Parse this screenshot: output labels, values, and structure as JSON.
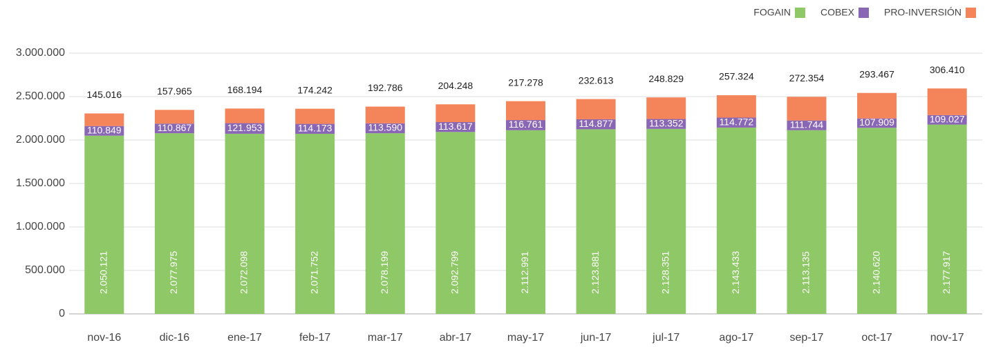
{
  "chart_data": {
    "type": "stacked_bar",
    "categories": [
      "nov-16",
      "dic-16",
      "ene-17",
      "feb-17",
      "mar-17",
      "abr-17",
      "may-17",
      "jun-17",
      "jul-17",
      "ago-17",
      "sep-17",
      "oct-17",
      "nov-17"
    ],
    "series": [
      {
        "name": "FOGAIN",
        "color": "#8fc866",
        "values": [
          2050121,
          2077975,
          2072098,
          2071752,
          2078199,
          2092799,
          2112991,
          2123881,
          2128351,
          2143433,
          2113135,
          2140620,
          2177917
        ],
        "value_labels": [
          "2.050.121",
          "2.077.975",
          "2.072.098",
          "2.071.752",
          "2.078.199",
          "2.092.799",
          "2.112.991",
          "2.123.881",
          "2.128.351",
          "2.143.433",
          "2.113.135",
          "2.140.620",
          "2.177.917"
        ]
      },
      {
        "name": "COBEX",
        "color": "#8a67b5",
        "values": [
          110849,
          110867,
          121953,
          114173,
          113590,
          113617,
          116761,
          114877,
          113352,
          114772,
          111744,
          107909,
          109027
        ],
        "value_labels": [
          "110.849",
          "110.867",
          "121.953",
          "114.173",
          "113.590",
          "113.617",
          "116.761",
          "114.877",
          "113.352",
          "114.772",
          "111.744",
          "107.909",
          "109.027"
        ]
      },
      {
        "name": "PRO-INVERSIÓN",
        "color": "#f4845a",
        "values": [
          145016,
          157965,
          168194,
          174242,
          192786,
          204248,
          217278,
          232613,
          248829,
          257324,
          272354,
          293467,
          306410
        ],
        "value_labels": [
          "145.016",
          "157.965",
          "168.194",
          "174.242",
          "192.786",
          "204.248",
          "217.278",
          "232.613",
          "248.829",
          "257.324",
          "272.354",
          "293.467",
          "306.410"
        ]
      }
    ],
    "ylim": [
      0,
      3000000
    ],
    "yticks": [
      0,
      {
        "value": 500000,
        "label": "500.000"
      },
      {
        "value": 1000000,
        "label": "1.000.000"
      },
      {
        "value": 1500000,
        "label": "1.500.000"
      },
      {
        "value": 2000000,
        "label": "2.000.000"
      },
      {
        "value": 2500000,
        "label": "2.500.000"
      },
      {
        "value": 3000000,
        "label": "3.000.000"
      }
    ],
    "grid": true,
    "legend": "top-right"
  }
}
